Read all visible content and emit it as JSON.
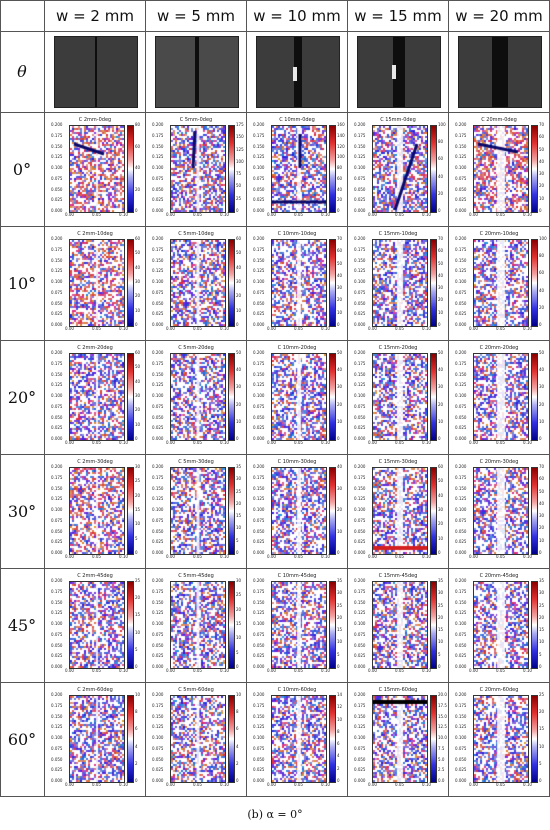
{
  "header": {
    "row_label": "θ",
    "columns": [
      "w = 2 mm",
      "w = 5 mm",
      "w = 10 mm",
      "w = 15 mm",
      "w = 20 mm"
    ]
  },
  "rows": [
    "0°",
    "10°",
    "20°",
    "30°",
    "45°",
    "60°"
  ],
  "panel_titles": [
    [
      "C 2mm-0deg",
      "C 5mm-0deg",
      "C 10mm-0deg",
      "C 15mm-0deg",
      "C 20mm-0deg"
    ],
    [
      "C 2mm-10deg",
      "C 5mm-10deg",
      "C 10mm-10deg",
      "C 15mm-10deg",
      "C 20mm-10deg"
    ],
    [
      "C 2mm-20deg",
      "C 5mm-20deg",
      "C 10mm-20deg",
      "C 15mm-20deg",
      "C 20mm-20deg"
    ],
    [
      "C 2mm-30deg",
      "C 5mm-30deg",
      "C 10mm-30deg",
      "C 15mm-30deg",
      "C 20mm-30deg"
    ],
    [
      "C 2mm-45deg",
      "C 5mm-45deg",
      "C 10mm-45deg",
      "C 15mm-45deg",
      "C 20mm-45deg"
    ],
    [
      "C 2mm-60deg",
      "C 5mm-60deg",
      "C 10mm-60deg",
      "C 15mm-60deg",
      "C 20mm-60deg"
    ]
  ],
  "x_ticks": [
    "0.00",
    "0.05",
    "0.10"
  ],
  "y_ticks": [
    "0.200",
    "0.175",
    "0.150",
    "0.125",
    "0.100",
    "0.075",
    "0.050",
    "0.025",
    "0.000"
  ],
  "colorbar_ticks": [
    [
      [
        "80",
        "60",
        "40",
        "20",
        "0"
      ],
      [
        "175",
        "150",
        "125",
        "100",
        "75",
        "50",
        "25",
        "0"
      ],
      [
        "160",
        "140",
        "120",
        "100",
        "80",
        "60",
        "40",
        "20",
        "0"
      ],
      [
        "100",
        "80",
        "60",
        "40",
        "20",
        "0"
      ],
      [
        "70",
        "60",
        "50",
        "40",
        "30",
        "20",
        "10",
        "0"
      ]
    ],
    [
      [
        "60",
        "50",
        "40",
        "30",
        "20",
        "10",
        "0"
      ],
      [
        "60",
        "50",
        "40",
        "30",
        "20",
        "10",
        "0"
      ],
      [
        "70",
        "60",
        "50",
        "40",
        "30",
        "20",
        "10",
        "0"
      ],
      [
        "70",
        "60",
        "50",
        "40",
        "30",
        "20",
        "10",
        "0"
      ],
      [
        "100",
        "80",
        "60",
        "40",
        "20",
        "0"
      ]
    ],
    [
      [
        "60",
        "50",
        "40",
        "30",
        "20",
        "10",
        "0"
      ],
      [
        "50",
        "40",
        "30",
        "20",
        "10",
        "0"
      ],
      [
        "50",
        "40",
        "30",
        "20",
        "10",
        "0"
      ],
      [
        "50",
        "40",
        "30",
        "20",
        "10",
        "0"
      ],
      [
        "50",
        "40",
        "30",
        "20",
        "10",
        "0"
      ]
    ],
    [
      [
        "30",
        "25",
        "20",
        "15",
        "10",
        "5",
        "0"
      ],
      [
        "35",
        "30",
        "25",
        "20",
        "15",
        "10",
        "5",
        "0"
      ],
      [
        "40",
        "30",
        "20",
        "10",
        "0"
      ],
      [
        "60",
        "50",
        "40",
        "30",
        "20",
        "10",
        "0"
      ],
      [
        "70",
        "60",
        "50",
        "40",
        "30",
        "20",
        "10",
        "0"
      ]
    ],
    [
      [
        "25",
        "20",
        "15",
        "10",
        "5",
        "0"
      ],
      [
        "30",
        "25",
        "20",
        "15",
        "10",
        "5",
        "0"
      ],
      [
        "35",
        "30",
        "25",
        "20",
        "15",
        "10",
        "5",
        "0"
      ],
      [
        "35",
        "30",
        "25",
        "20",
        "15",
        "10",
        "5",
        "0"
      ],
      [
        "35",
        "30",
        "25",
        "20",
        "15",
        "10",
        "5",
        "0"
      ]
    ],
    [
      [
        "10",
        "8",
        "6",
        "4",
        "2",
        "0"
      ],
      [
        "10",
        "8",
        "6",
        "4",
        "2",
        "0"
      ],
      [
        "14",
        "12",
        "10",
        "8",
        "6",
        "4",
        "2",
        "0"
      ],
      [
        "20.0",
        "17.5",
        "15.0",
        "12.5",
        "10.0",
        "7.5",
        "5.0",
        "2.5",
        "0.0"
      ],
      [
        "25",
        "20",
        "15",
        "10",
        "5",
        "0"
      ]
    ]
  ],
  "caption": "(b)  α = 0°",
  "colors": {
    "positive": "#d42020",
    "negative": "#1a1ad0",
    "neutral": "#ffffff",
    "grid": "#555555",
    "plate": "#3c3c3c"
  }
}
